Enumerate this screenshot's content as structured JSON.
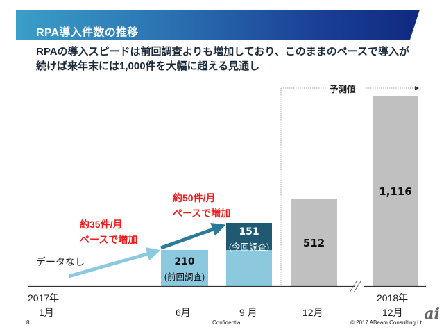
{
  "header": {
    "title": "RPA導入件数の推移"
  },
  "subtitle": {
    "line1": "RPAの導入スピードは前回調査よりも増加しており、このままのペースで導入が",
    "line2": "続けば来年末には1,000件を大幅に超える見通し"
  },
  "chart_data": {
    "type": "bar",
    "title": "RPA導入件数の推移",
    "categories": [
      "2017年 1月",
      "6月",
      "9月",
      "12月",
      "2018年 12月"
    ],
    "x_labels": {
      "year_start": "2017年",
      "year_end": "2018年",
      "months": [
        "1月",
        "6月",
        "9 月",
        "12月",
        "12月"
      ]
    },
    "series": [
      {
        "name": "前回調査",
        "values": [
          null,
          210,
          210,
          null,
          null
        ],
        "color": "#8cc9df"
      },
      {
        "name": "今回調査増分",
        "values": [
          null,
          null,
          151,
          null,
          null
        ],
        "color": "#1f5a72"
      },
      {
        "name": "予測値",
        "values": [
          null,
          null,
          null,
          512,
          1116
        ],
        "color": "#c0c0c0"
      }
    ],
    "data_labels": {
      "bar1_value": "210",
      "bar1_note": "(前回調査)",
      "bar2_value": "151",
      "bar2_note": "(今回調査)",
      "bar3_value": "512",
      "bar4_value": "1,116"
    },
    "no_data_label": "データなし",
    "forecast_label": "予測値",
    "annotations": [
      {
        "line1": "約35件/月",
        "line2": "ペースで増加"
      },
      {
        "line1": "約50件/月",
        "line2": "ペースで増加"
      }
    ],
    "ylim": [
      0,
      1200
    ],
    "axis_break": true,
    "colors": {
      "arrow_light": "#8cc9df",
      "arrow_dark": "#2a7a98",
      "annotation": "#ee1c1c"
    }
  },
  "footer": {
    "page_number": "8",
    "confidential": "Confidential",
    "copyright": "© 2017 ABeam Consulting Lt",
    "logo": "ai"
  }
}
